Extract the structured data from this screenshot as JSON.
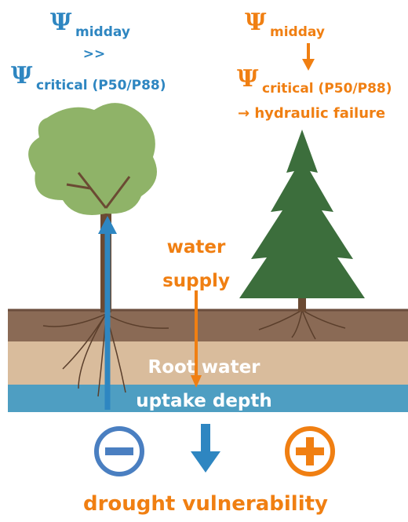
{
  "left": {
    "midday": {
      "symbol": "Ψ",
      "subscript": "midday"
    },
    "comparison": ">>",
    "critical": {
      "symbol": "Ψ",
      "subscript": "critical (P50/P88)"
    }
  },
  "right": {
    "midday": {
      "symbol": "Ψ",
      "subscript": "midday"
    },
    "critical": {
      "symbol": "Ψ",
      "subscript": "critical (P50/P88)"
    },
    "consequence": "→ hydraulic failure"
  },
  "water_supply": {
    "line1": "water",
    "line2": "supply"
  },
  "root_depth": {
    "line1": "Root water",
    "line2": "uptake depth"
  },
  "footer": "drought vulnerability"
}
